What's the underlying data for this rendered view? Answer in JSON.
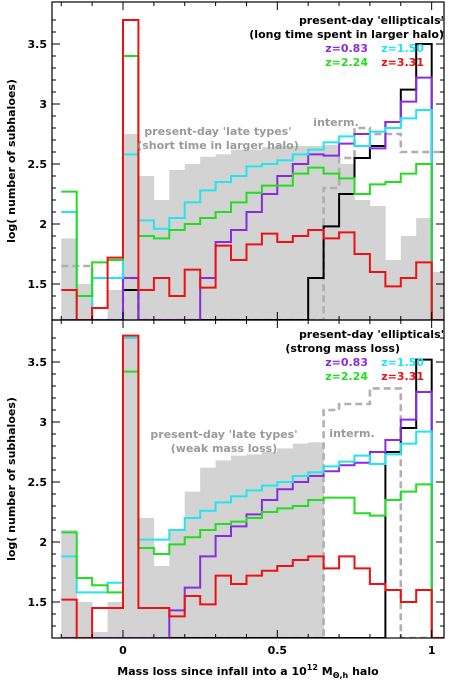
{
  "figure": {
    "xlabel_prefix": "Mass loss since infall into a 10",
    "xlabel_exp": "12",
    "xlabel_M": " M",
    "xlabel_sub": "Θ,h",
    "xlabel_suffix": " halo",
    "ylabel": "log( number of subhaloes)",
    "xticks": [
      "0",
      "0.5",
      "1"
    ],
    "yticks": [
      "1.5",
      "2",
      "2.5",
      "3",
      "3.5"
    ]
  },
  "colors": {
    "gray_fill": "#d3d3d3",
    "interm": "#b0b0b0",
    "z0.83": "#8a2be2",
    "z1.50": "#22e5f0",
    "z2.24": "#22dd22",
    "z3.31": "#ee1111",
    "black": "#000000",
    "annot_gray": "#9a9a9a"
  },
  "chart_data": [
    {
      "type": "histogram",
      "panel": "top",
      "xlabel": "",
      "ylabel": "log( number of subhaloes)",
      "xlim": [
        -0.23,
        1.04
      ],
      "ylim": [
        1.2,
        3.85
      ],
      "bins": [
        -0.2,
        -0.15,
        -0.1,
        -0.05,
        0.0,
        0.05,
        0.1,
        0.15,
        0.2,
        0.25,
        0.3,
        0.35,
        0.4,
        0.45,
        0.5,
        0.55,
        0.6,
        0.65,
        0.7,
        0.75,
        0.8,
        0.85,
        0.9,
        0.95,
        1.0
      ],
      "annotations": {
        "ellipticals_title": "present-day 'ellipticals'",
        "ellipticals_sub": "(long time spent in larger halo)",
        "late_title": "present-day 'late types'",
        "late_sub": "(short time in larger halo)",
        "interm": "interm.",
        "legend": [
          {
            "label": "z=0.83",
            "color": "#8a2be2"
          },
          {
            "label": "z=1.50",
            "color": "#22e5f0"
          },
          {
            "label": "z=2.24",
            "color": "#22dd22"
          },
          {
            "label": "z=3.31",
            "color": "#ee1111"
          }
        ]
      },
      "series": [
        {
          "name": "late types",
          "style": "fill",
          "color": "#d3d3d3",
          "values": [
            1.88,
            1.5,
            1.2,
            1.45,
            2.75,
            2.4,
            2.2,
            2.45,
            2.5,
            2.56,
            2.58,
            2.62,
            2.62,
            2.64,
            2.65,
            2.65,
            2.65,
            2.66,
            2.5,
            2.2,
            2.15,
            1.7,
            1.9,
            2.05,
            1.6
          ]
        },
        {
          "name": "interm.",
          "style": "dash",
          "color": "#b0b0b0",
          "values": [
            1.65,
            1.65,
            1.2,
            1.2,
            1.55,
            1.2,
            1.2,
            1.2,
            1.2,
            1.2,
            1.2,
            1.2,
            1.2,
            1.2,
            1.2,
            1.2,
            1.2,
            2.3,
            2.55,
            2.8,
            2.75,
            2.75,
            2.6,
            2.6,
            2.6
          ]
        },
        {
          "name": "black",
          "style": "line",
          "color": "#000000",
          "values": [
            1.2,
            1.2,
            1.2,
            1.2,
            1.45,
            1.2,
            1.2,
            1.2,
            1.2,
            1.2,
            1.2,
            1.2,
            1.2,
            1.2,
            1.2,
            1.2,
            1.55,
            1.98,
            2.25,
            2.55,
            2.65,
            2.85,
            3.12,
            3.5,
            1.2
          ]
        },
        {
          "name": "z=0.83",
          "style": "line",
          "color": "#8a2be2",
          "values": [
            1.2,
            1.2,
            1.2,
            1.2,
            1.55,
            1.2,
            1.2,
            1.2,
            1.2,
            1.55,
            1.85,
            1.95,
            2.1,
            2.25,
            2.4,
            2.5,
            2.58,
            2.57,
            2.67,
            2.75,
            2.63,
            2.85,
            3.02,
            3.22,
            1.2
          ]
        },
        {
          "name": "z=1.50",
          "style": "line",
          "color": "#22e5f0",
          "values": [
            2.1,
            1.2,
            1.55,
            1.55,
            2.58,
            2.03,
            1.96,
            2.05,
            2.18,
            2.28,
            2.35,
            2.4,
            2.48,
            2.5,
            2.53,
            2.58,
            2.62,
            2.68,
            2.73,
            2.65,
            2.77,
            2.8,
            2.88,
            2.95,
            1.2
          ]
        },
        {
          "name": "z=2.24",
          "style": "line",
          "color": "#22dd22",
          "values": [
            2.27,
            1.4,
            1.68,
            1.7,
            3.4,
            1.9,
            1.88,
            1.95,
            2.0,
            2.05,
            2.1,
            2.18,
            2.26,
            2.32,
            2.32,
            2.42,
            2.47,
            2.42,
            2.38,
            2.25,
            2.33,
            2.35,
            2.42,
            2.5,
            1.2
          ]
        },
        {
          "name": "z=3.31",
          "style": "line",
          "color": "#ee1111",
          "values": [
            1.45,
            1.2,
            1.3,
            1.72,
            3.7,
            1.45,
            1.55,
            1.4,
            1.62,
            1.47,
            1.82,
            1.7,
            1.83,
            1.92,
            1.85,
            1.9,
            1.95,
            1.88,
            1.93,
            1.75,
            1.6,
            1.48,
            1.55,
            1.68,
            1.2
          ]
        }
      ]
    },
    {
      "type": "histogram",
      "panel": "bottom",
      "xlabel": "Mass loss since infall into a 10^12 M_Θ,h halo",
      "ylabel": "log( number of subhaloes)",
      "xlim": [
        -0.23,
        1.04
      ],
      "ylim": [
        1.2,
        3.85
      ],
      "bins": [
        -0.2,
        -0.15,
        -0.1,
        -0.05,
        0.0,
        0.05,
        0.1,
        0.15,
        0.2,
        0.25,
        0.3,
        0.35,
        0.4,
        0.45,
        0.5,
        0.55,
        0.6,
        0.65,
        0.7,
        0.75,
        0.8,
        0.85,
        0.9,
        0.95,
        1.0
      ],
      "annotations": {
        "ellipticals_title": "present-day 'ellipticals'",
        "ellipticals_sub": "(strong mass loss)",
        "late_title": "present-day 'late types'",
        "late_sub": "(weak mass loss)",
        "interm": "interm.",
        "legend": [
          {
            "label": "z=0.83",
            "color": "#8a2be2"
          },
          {
            "label": "z=1.50",
            "color": "#22e5f0"
          },
          {
            "label": "z=2.24",
            "color": "#22dd22"
          },
          {
            "label": "z=3.31",
            "color": "#ee1111"
          }
        ]
      },
      "series": [
        {
          "name": "late types",
          "style": "fill",
          "color": "#d3d3d3",
          "values": [
            2.1,
            1.5,
            1.25,
            1.5,
            3.72,
            2.2,
            1.8,
            2.1,
            2.42,
            2.62,
            2.68,
            2.72,
            2.73,
            2.75,
            2.78,
            2.82,
            2.83,
            1.2,
            1.2,
            1.2,
            1.2,
            1.2,
            1.2,
            1.2,
            1.2
          ]
        },
        {
          "name": "interm.",
          "style": "dash",
          "color": "#b0b0b0",
          "values": [
            1.2,
            1.2,
            1.2,
            1.2,
            1.2,
            1.2,
            1.2,
            1.2,
            1.2,
            1.2,
            1.2,
            1.2,
            1.2,
            1.2,
            1.2,
            1.2,
            1.2,
            3.1,
            3.15,
            3.15,
            3.28,
            3.28,
            1.2,
            1.2,
            1.2
          ]
        },
        {
          "name": "black",
          "style": "line",
          "color": "#000000",
          "values": [
            1.2,
            1.2,
            1.2,
            1.2,
            1.2,
            1.2,
            1.2,
            1.2,
            1.2,
            1.2,
            1.2,
            1.2,
            1.2,
            1.2,
            1.2,
            1.2,
            1.2,
            1.2,
            1.2,
            1.2,
            1.2,
            2.75,
            2.95,
            3.52,
            1.2
          ]
        },
        {
          "name": "z=0.83",
          "style": "line",
          "color": "#8a2be2",
          "values": [
            1.2,
            1.2,
            1.2,
            1.2,
            1.2,
            1.2,
            1.2,
            1.43,
            1.62,
            1.88,
            2.05,
            2.13,
            2.23,
            2.35,
            2.44,
            2.5,
            2.55,
            2.59,
            2.64,
            2.66,
            2.75,
            2.85,
            3.02,
            3.25,
            1.2
          ]
        },
        {
          "name": "z=1.50",
          "style": "line",
          "color": "#22e5f0",
          "values": [
            1.88,
            1.58,
            1.58,
            1.66,
            3.7,
            2.02,
            2.02,
            2.1,
            2.2,
            2.26,
            2.33,
            2.38,
            2.43,
            2.47,
            2.5,
            2.55,
            2.58,
            2.63,
            2.67,
            2.72,
            2.65,
            2.73,
            2.82,
            2.92,
            1.2
          ]
        },
        {
          "name": "z=2.24",
          "style": "line",
          "color": "#22dd22",
          "values": [
            2.08,
            1.7,
            1.64,
            1.58,
            3.42,
            1.95,
            1.9,
            1.98,
            2.04,
            2.1,
            2.15,
            2.17,
            2.2,
            2.25,
            2.28,
            2.3,
            2.35,
            2.37,
            2.37,
            2.24,
            2.22,
            2.35,
            2.42,
            2.48,
            1.2
          ]
        },
        {
          "name": "z=3.31",
          "style": "line",
          "color": "#ee1111",
          "values": [
            1.52,
            1.2,
            1.45,
            1.45,
            3.72,
            1.45,
            1.45,
            1.38,
            1.55,
            1.48,
            1.72,
            1.65,
            1.72,
            1.76,
            1.8,
            1.85,
            1.88,
            1.78,
            1.88,
            1.78,
            1.65,
            1.6,
            1.5,
            1.6,
            1.2
          ]
        }
      ]
    }
  ]
}
